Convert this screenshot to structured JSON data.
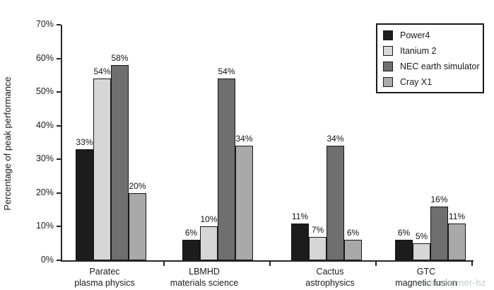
{
  "watermark": "transformer-hz",
  "chart_data": {
    "type": "bar",
    "title": "",
    "xlabel": "",
    "ylabel": "Percentage of peak performance",
    "ylim": [
      0,
      70
    ],
    "yticks": [
      0,
      10,
      20,
      30,
      40,
      50,
      60,
      70
    ],
    "ytick_suffix": "%",
    "grid": false,
    "legend_position": "top-right",
    "categories": [
      [
        "Paratec",
        "plasma physics"
      ],
      [
        "LBMHD",
        "materials science"
      ],
      [
        "Cactus",
        "astrophysics"
      ],
      [
        "GTC",
        "magnetic fusion"
      ]
    ],
    "series": [
      {
        "name": "Power4",
        "color": "#1c1c1c",
        "values": [
          33,
          6,
          11,
          6
        ]
      },
      {
        "name": "Itanium 2",
        "color": "#d6d6d6",
        "values": [
          54,
          10,
          7,
          5
        ]
      },
      {
        "name": "NEC earth simulator",
        "color": "#6f6f6f",
        "values": [
          58,
          54,
          34,
          16
        ]
      },
      {
        "name": "Cray X1",
        "color": "#a9a9a9",
        "values": [
          20,
          34,
          6,
          11
        ]
      }
    ],
    "value_label_suffix": "%",
    "bar_border_color": "#161616",
    "axis_color": "#262626"
  }
}
